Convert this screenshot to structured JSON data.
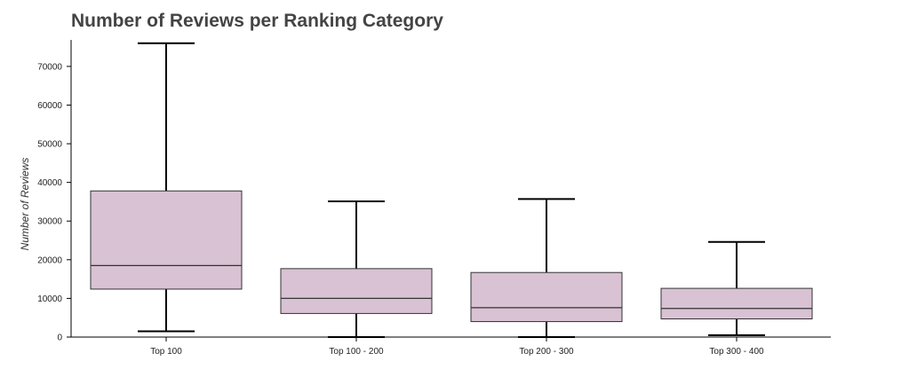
{
  "chart_data": {
    "type": "box",
    "title": "Number of Reviews per Ranking Category",
    "xlabel": "",
    "ylabel": "Number of Reviews",
    "ylim": [
      0,
      78000
    ],
    "yticks": [
      0,
      10000,
      20000,
      30000,
      40000,
      50000,
      60000,
      70000
    ],
    "categories": [
      "Top 100",
      "Top 100 - 200",
      "Top 200 - 300",
      "Top 300 - 400"
    ],
    "boxes": [
      {
        "category": "Top 100",
        "whisker_low": 1500,
        "q1": 12400,
        "median": 18500,
        "q3": 37800,
        "whisker_high": 76000
      },
      {
        "category": "Top 100 - 200",
        "whisker_low": 0,
        "q1": 6100,
        "median": 10000,
        "q3": 17700,
        "whisker_high": 35100
      },
      {
        "category": "Top 200 - 300",
        "whisker_low": 0,
        "q1": 4000,
        "median": 7600,
        "q3": 16700,
        "whisker_high": 35700
      },
      {
        "category": "Top 300 - 400",
        "whisker_low": 500,
        "q1": 4700,
        "median": 7400,
        "q3": 12600,
        "whisker_high": 24600
      }
    ],
    "box_color": "#d8c2d3",
    "line_color": "#000000",
    "grid": false,
    "legend": "none"
  }
}
